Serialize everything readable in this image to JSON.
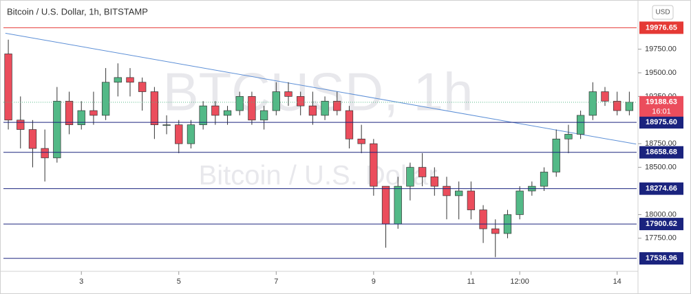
{
  "chart_data": {
    "type": "candlestick",
    "title": "Bitcoin / U.S. Dollar, 1h, BITSTAMP",
    "watermark": "BTCUSD, 1h",
    "watermark_sub": "Bitcoin / U.S. Dollar",
    "currency": "USD",
    "countdown": "16:01",
    "up_color": "#53b987",
    "down_color": "#eb4d5c",
    "x": [
      1.5,
      1.75,
      2,
      2.25,
      2.5,
      2.75,
      3,
      3.25,
      3.5,
      3.75,
      4,
      4.25,
      4.5,
      4.75,
      5,
      5.25,
      5.5,
      5.75,
      6,
      6.25,
      6.5,
      6.75,
      7,
      7.25,
      7.5,
      7.75,
      8,
      8.25,
      8.5,
      8.75,
      9,
      9.25,
      9.5,
      9.75,
      10,
      10.25,
      10.5,
      10.75,
      11,
      11.25,
      11.5,
      11.75,
      12,
      12.25,
      12.5,
      12.75,
      13,
      13.25,
      13.5,
      13.75,
      14,
      14.25
    ],
    "open": [
      19700,
      19000,
      18900,
      18700,
      18600,
      19200,
      18950,
      19100,
      19050,
      19400,
      19450,
      19400,
      19300,
      18950,
      18950,
      18750,
      18950,
      19150,
      19050,
      19100,
      19250,
      19000,
      19100,
      19300,
      19250,
      19150,
      19050,
      19200,
      19100,
      18800,
      18750,
      18300,
      17900,
      18300,
      18500,
      18400,
      18300,
      18200,
      18250,
      18050,
      17850,
      17800,
      18000,
      18250,
      18300,
      18450,
      18800,
      18850,
      19050,
      19300,
      19200,
      19100
    ],
    "high": [
      19850,
      19250,
      19000,
      18900,
      19350,
      19300,
      19200,
      19300,
      19550,
      19600,
      19550,
      19450,
      19350,
      19050,
      19000,
      19000,
      19200,
      19200,
      19150,
      19300,
      19300,
      19150,
      19400,
      19400,
      19300,
      19300,
      19250,
      19300,
      19150,
      18950,
      18800,
      18300,
      18400,
      18550,
      18650,
      18500,
      18400,
      18350,
      18350,
      18100,
      17950,
      18050,
      18300,
      18350,
      18500,
      18900,
      18950,
      19100,
      19400,
      19350,
      19300,
      19300
    ],
    "low": [
      18900,
      18700,
      18500,
      18350,
      18550,
      18850,
      18900,
      18950,
      19000,
      19250,
      19250,
      19100,
      18800,
      18850,
      18650,
      18700,
      18900,
      18950,
      18950,
      19050,
      18950,
      18900,
      19050,
      19150,
      19050,
      18950,
      19000,
      19050,
      18700,
      18650,
      18200,
      17650,
      17850,
      18150,
      18300,
      18200,
      17950,
      17950,
      17950,
      17700,
      17550,
      17750,
      17950,
      18200,
      18250,
      18400,
      18650,
      18800,
      19000,
      19150,
      19050,
      19050
    ],
    "close": [
      19000,
      18900,
      18700,
      18600,
      19200,
      18950,
      19100,
      19050,
      19400,
      19450,
      19400,
      19300,
      18950,
      18950,
      18750,
      18950,
      19150,
      19050,
      19100,
      19250,
      19000,
      19100,
      19300,
      19250,
      19150,
      19050,
      19200,
      19100,
      18800,
      18750,
      18300,
      17900,
      18300,
      18500,
      18400,
      18300,
      18200,
      18250,
      18050,
      17850,
      17800,
      18000,
      18250,
      18300,
      18450,
      18800,
      18850,
      19050,
      19300,
      19200,
      19100,
      19188.63
    ],
    "levels": [
      {
        "value": 19976.65,
        "color": "#e53935"
      },
      {
        "value": 18975.6,
        "label": "18975.60",
        "color": "#1a237e"
      },
      {
        "value": 18658.68,
        "color": "#1a237e"
      },
      {
        "value": 18274.66,
        "color": "#1a237e"
      },
      {
        "value": 17900.62,
        "color": "#1a237e"
      },
      {
        "value": 17536.96,
        "color": "#1a237e"
      }
    ],
    "trendline": {
      "x": [
        1.44,
        14.39
      ],
      "y": [
        19918.7,
        18745.9
      ],
      "color": "#5b8ed6"
    },
    "xlim": [
      1.4,
      14.4
    ],
    "xticks": [
      3,
      5,
      7,
      9,
      11,
      {
        "value": 12,
        "label": "12:00"
      },
      14
    ],
    "ylim": [
      17400,
      20270
    ],
    "yticks": [
      {
        "value": 19750,
        "label": "19750.00"
      },
      {
        "value": 19500,
        "label": "19500.00"
      },
      {
        "value": 19250,
        "label": "19250.00"
      },
      {
        "value": 18750,
        "label": "18750.00"
      },
      {
        "value": 18500,
        "label": "18500.00"
      },
      {
        "value": 18000,
        "label": "18000.00"
      },
      {
        "value": 17750,
        "label": "17750.00"
      }
    ]
  }
}
